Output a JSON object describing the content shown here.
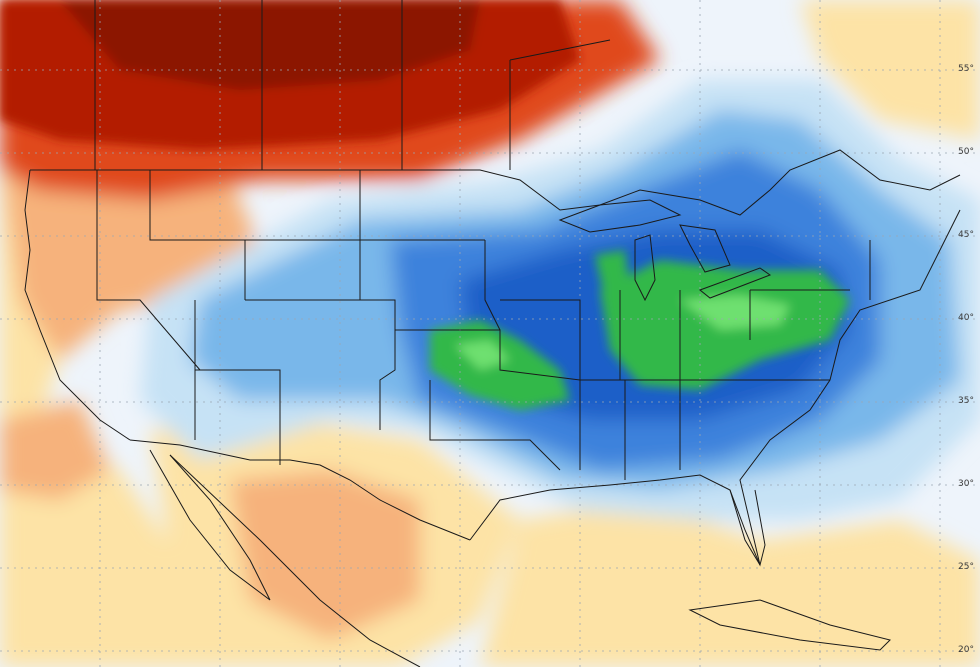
{
  "map": {
    "type": "temperature-anomaly-map",
    "region": "North America",
    "colors": {
      "ocean_base": "#eef4fb",
      "very_warm": "#8c1200",
      "warm_dark": "#b31d00",
      "warm": "#e0481b",
      "warm_mid": "#f08c55",
      "warm_light": "#f6b27c",
      "mild_warm": "#fde3a6",
      "neutral": "#f1f6fc",
      "cool_light": "#c6e2f5",
      "cool": "#79b7ea",
      "cold": "#3c82dc",
      "colder": "#1f5fc8",
      "very_cold_green": "#33b84a",
      "extreme_green": "#6ee06f",
      "border": "#1a1a1a",
      "grid": "#9aa6b3"
    },
    "latitude_labels": [
      "55°",
      "50°",
      "45°",
      "40°",
      "35°",
      "30°",
      "25°",
      "20°"
    ]
  }
}
